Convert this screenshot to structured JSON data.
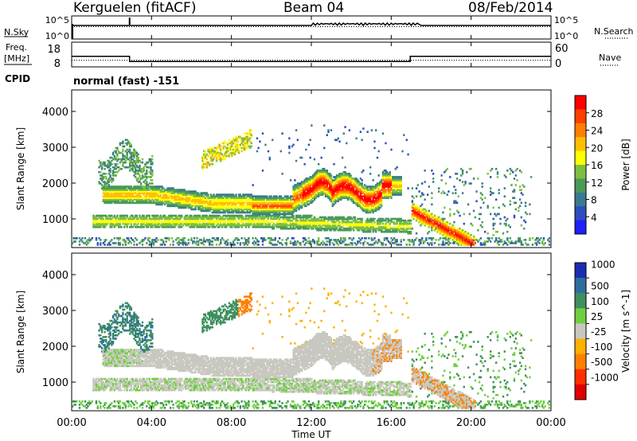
{
  "header": {
    "station": "Kerguelen (fitACF)",
    "beam": "Beam 04",
    "date": "08/Feb/2014"
  },
  "labels": {
    "nsky": "N.Sky",
    "nsearch": "N.Search",
    "freq_line1": "Freq.",
    "freq_line2": "[MHz]",
    "nave": "Nave",
    "cpid": "CPID",
    "mode": "normal (fast) -151",
    "nsky_top": "10^5",
    "nsky_bottom": "10^0",
    "freq_top": "18",
    "freq_bottom": "8",
    "nave_top": "60",
    "nave_bottom": "0"
  },
  "chart_data": [
    {
      "type": "line",
      "name": "noise",
      "ylabel_left": "N.Sky",
      "ylabel_right": "N.Search",
      "yticks_left": [
        "10^5",
        "10^0"
      ],
      "yticks_right": [
        "10^5",
        "10^0"
      ]
    },
    {
      "type": "line",
      "name": "frequency",
      "ylabel_left": "Freq. [MHz]",
      "ylabel_right": "Nave",
      "yticks_left": [
        "18",
        "8"
      ],
      "yticks_right": [
        "60",
        "0"
      ],
      "freq_segments": [
        {
          "t0": 0.0,
          "t1": 2.9,
          "value": 12.3
        },
        {
          "t0": 2.9,
          "t1": 16.95,
          "value": 10.2
        },
        {
          "t0": 16.95,
          "t1": 24.0,
          "value": 12.3
        }
      ],
      "nave_value": 16
    },
    {
      "type": "heatmap",
      "name": "power",
      "ylabel": "Slant Range [km]",
      "yticks": [
        1000,
        2000,
        3000,
        4000
      ],
      "ylim": [
        200,
        4600
      ],
      "xlim": [
        0,
        24
      ],
      "colorbar_label": "Power [dB]",
      "colorbar_ticks": [
        4,
        8,
        12,
        16,
        20,
        24,
        28
      ],
      "colorbar_colors": [
        "#1f1fff",
        "#2e4dbf",
        "#3a7a8e",
        "#4a9a5a",
        "#7fbf3f",
        "#ffff00",
        "#ffbf00",
        "#ff7f00",
        "#ff3f00",
        "#ff0000"
      ]
    },
    {
      "type": "heatmap",
      "name": "velocity",
      "ylabel": "Slant Range [km]",
      "yticks": [
        1000,
        2000,
        3000,
        4000
      ],
      "ylim": [
        200,
        4600
      ],
      "xlim": [
        0,
        24
      ],
      "xticks": [
        "00:00",
        "04:00",
        "08:00",
        "12:00",
        "16:00",
        "20:00",
        "00:00"
      ],
      "xlabel": "Time UT",
      "colorbar_label": "Velocity [m s^-1]",
      "colorbar_ticks": [
        "1000",
        "500",
        "100",
        "25",
        "-25",
        "-100",
        "-500",
        "-1000"
      ],
      "colorbar_colors": [
        "#1a2fb0",
        "#2e6fa0",
        "#3f8f5f",
        "#6fcf3f",
        "#c8c8c0",
        "#ffb000",
        "#ff8000",
        "#ff3000",
        "#e00000"
      ]
    }
  ]
}
